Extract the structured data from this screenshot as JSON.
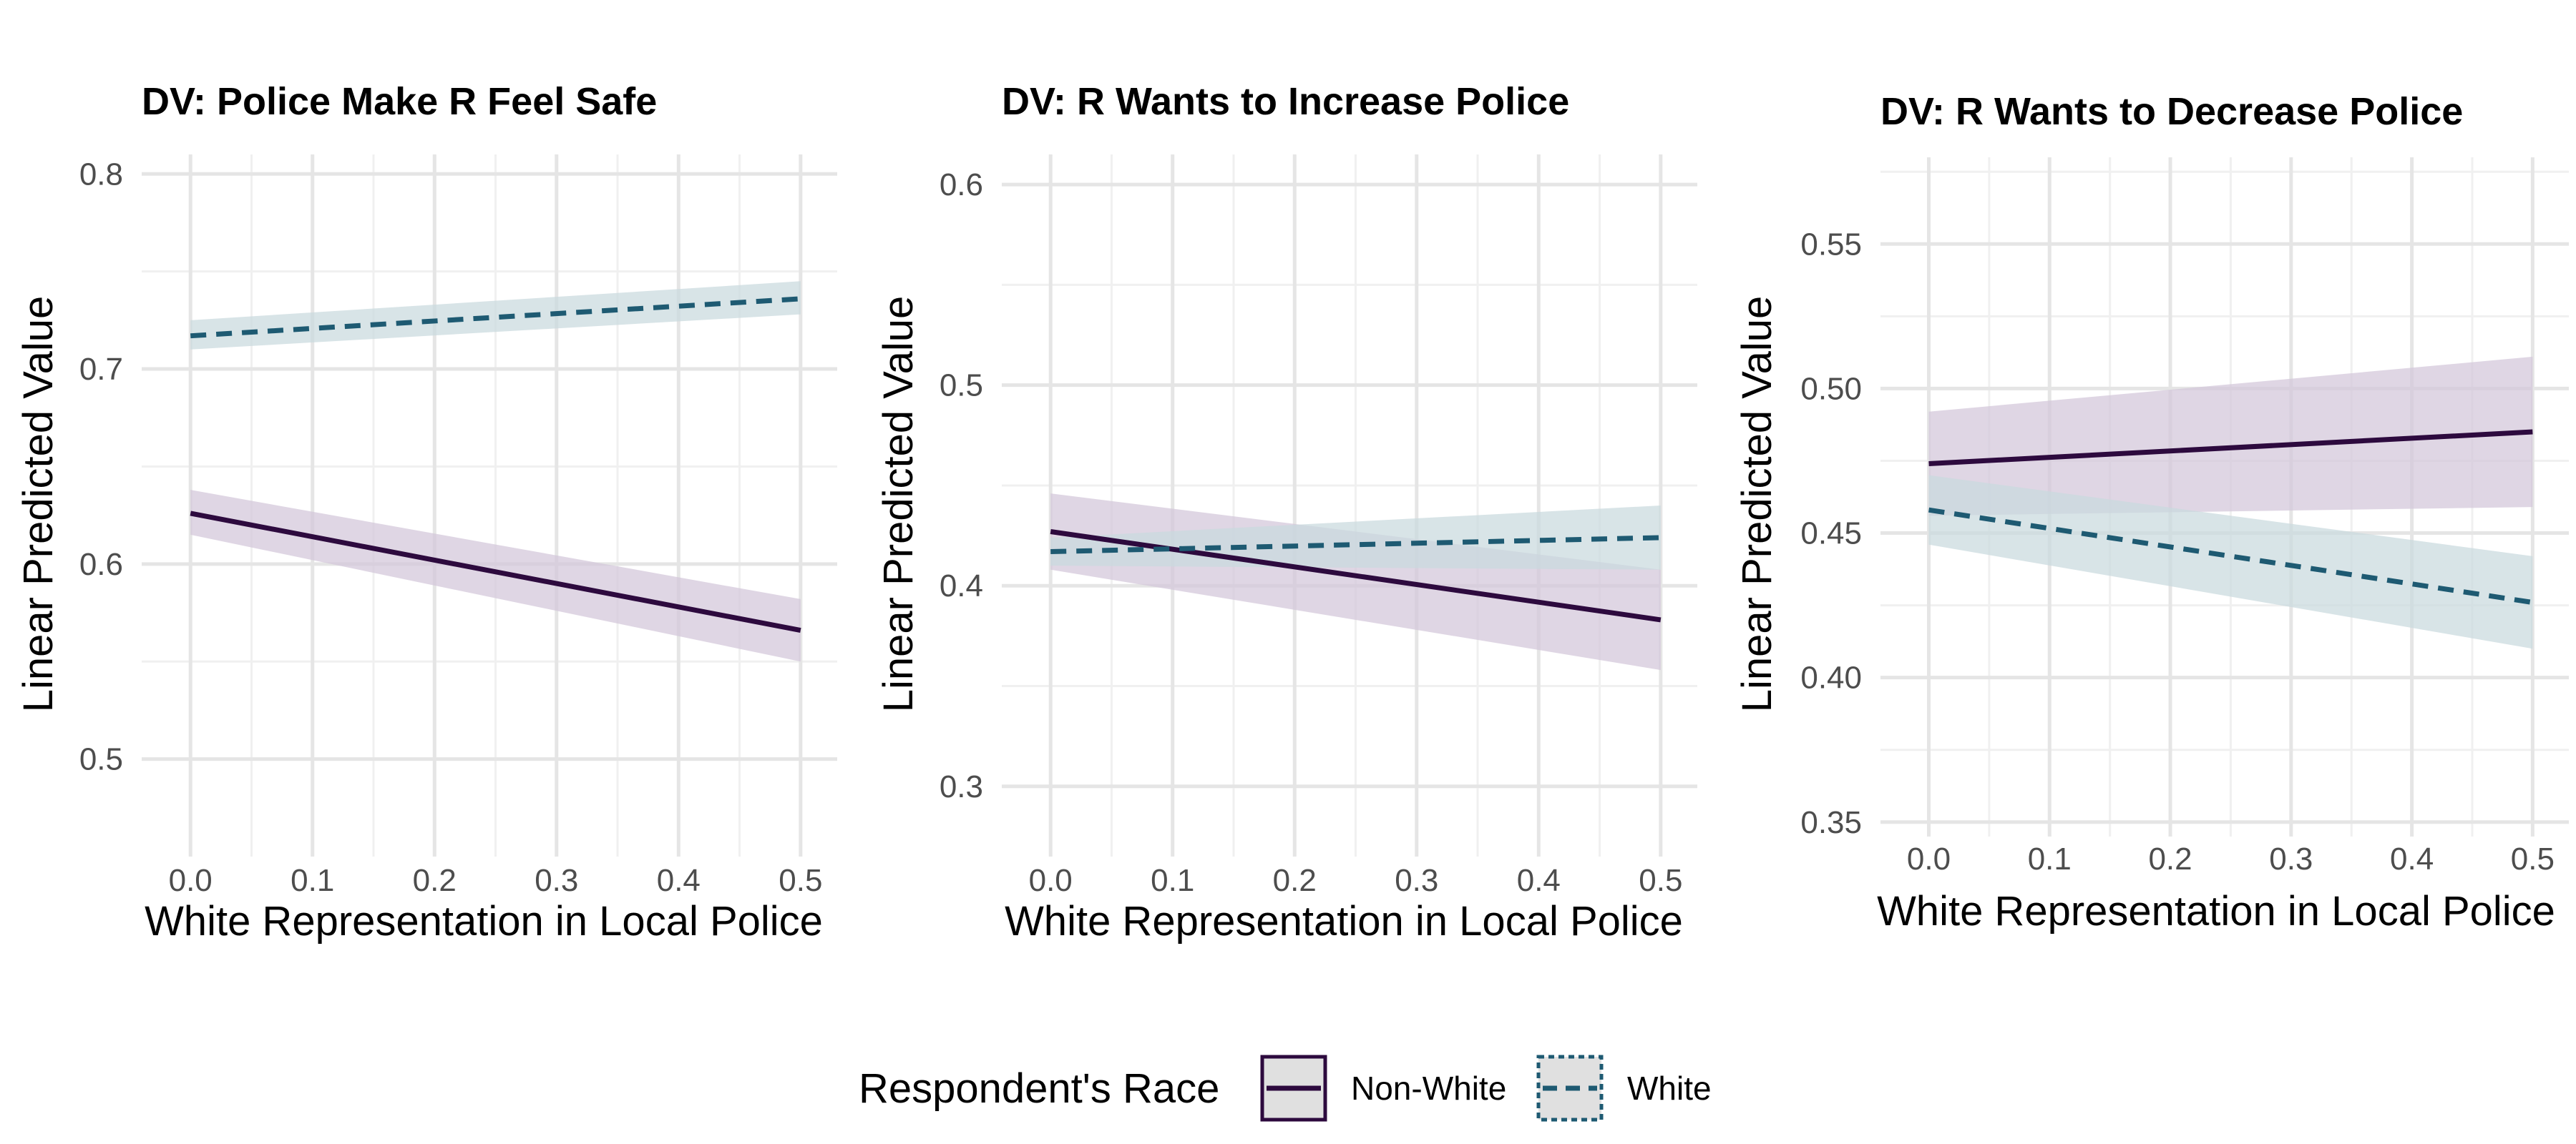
{
  "chart_data": [
    {
      "type": "line",
      "title": "DV: Police Make R Feel Safe",
      "xlabel": "White Representation in Local Police",
      "ylabel": "Linear Predicted Value",
      "xlim": [
        -0.04,
        0.53
      ],
      "ylim": [
        0.45,
        0.81
      ],
      "xticks": [
        0.0,
        0.1,
        0.2,
        0.3,
        0.4,
        0.5
      ],
      "xtick_labels": [
        "0.0",
        "0.1",
        "0.2",
        "0.3",
        "0.4",
        "0.5"
      ],
      "yticks": [
        0.5,
        0.6,
        0.7,
        0.8
      ],
      "ytick_labels": [
        "0.5",
        "0.6",
        "0.7",
        "0.8"
      ],
      "grid": true,
      "series": [
        {
          "name": "Non-White",
          "x": [
            0.0,
            0.5
          ],
          "y": [
            0.626,
            0.566
          ],
          "ci_lower": [
            0.615,
            0.55
          ],
          "ci_upper": [
            0.638,
            0.582
          ]
        },
        {
          "name": "White",
          "x": [
            0.0,
            0.5
          ],
          "y": [
            0.717,
            0.736
          ],
          "ci_lower": [
            0.71,
            0.728
          ],
          "ci_upper": [
            0.725,
            0.745
          ]
        }
      ]
    },
    {
      "type": "line",
      "title": "DV: R Wants to Increase Police",
      "xlabel": "White Representation in Local Police",
      "ylabel": "Linear Predicted Value",
      "xlim": [
        -0.04,
        0.53
      ],
      "ylim": [
        0.265,
        0.615
      ],
      "xticks": [
        0.0,
        0.1,
        0.2,
        0.3,
        0.4,
        0.5
      ],
      "xtick_labels": [
        "0.0",
        "0.1",
        "0.2",
        "0.3",
        "0.4",
        "0.5"
      ],
      "yticks": [
        0.3,
        0.4,
        0.5,
        0.6
      ],
      "ytick_labels": [
        "0.3",
        "0.4",
        "0.5",
        "0.6"
      ],
      "grid": true,
      "series": [
        {
          "name": "Non-White",
          "x": [
            0.0,
            0.5
          ],
          "y": [
            0.427,
            0.383
          ],
          "ci_lower": [
            0.408,
            0.358
          ],
          "ci_upper": [
            0.446,
            0.408
          ]
        },
        {
          "name": "White",
          "x": [
            0.0,
            0.5
          ],
          "y": [
            0.417,
            0.424
          ],
          "ci_lower": [
            0.41,
            0.408
          ],
          "ci_upper": [
            0.424,
            0.44
          ]
        }
      ]
    },
    {
      "type": "line",
      "title": "DV: R Wants to Decrease Police",
      "xlabel": "White Representation in Local Police",
      "ylabel": "Linear Predicted Value",
      "xlim": [
        -0.04,
        0.53
      ],
      "ylim": [
        0.345,
        0.58
      ],
      "xticks": [
        0.0,
        0.1,
        0.2,
        0.3,
        0.4,
        0.5
      ],
      "xtick_labels": [
        "0.0",
        "0.1",
        "0.2",
        "0.3",
        "0.4",
        "0.5"
      ],
      "yticks": [
        0.35,
        0.4,
        0.45,
        0.5,
        0.55
      ],
      "ytick_labels": [
        "0.35",
        "0.40",
        "0.45",
        "0.50",
        "0.55"
      ],
      "grid": true,
      "series": [
        {
          "name": "Non-White",
          "x": [
            0.0,
            0.5
          ],
          "y": [
            0.474,
            0.485
          ],
          "ci_lower": [
            0.456,
            0.459
          ],
          "ci_upper": [
            0.492,
            0.511
          ]
        },
        {
          "name": "White",
          "x": [
            0.0,
            0.5
          ],
          "y": [
            0.458,
            0.426
          ],
          "ci_lower": [
            0.446,
            0.41
          ],
          "ci_upper": [
            0.47,
            0.442
          ]
        }
      ]
    }
  ],
  "legend": {
    "title": "Respondent's Race",
    "position": "bottom",
    "items": [
      {
        "label": "Non-White",
        "line": "solid",
        "color": "#2d0a3e",
        "fill": "#d3c6da"
      },
      {
        "label": "White",
        "line": "dashed",
        "color": "#1e5a72",
        "fill": "#c9d9de"
      }
    ]
  },
  "colors": {
    "non_white": "#2d0a3e",
    "white": "#1e5a72",
    "non_white_band": "#d3c6da",
    "white_band": "#c9d9de",
    "grid_major": "#e5e5e5",
    "grid_minor": "#f0f0f0"
  }
}
